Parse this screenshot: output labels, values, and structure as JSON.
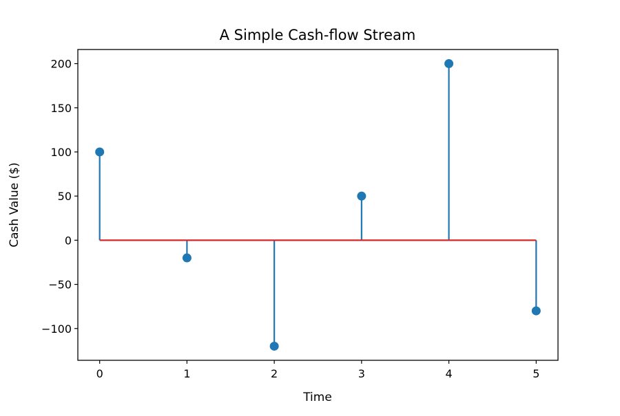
{
  "chart_data": {
    "type": "stem",
    "title": "A Simple Cash-flow Stream",
    "xlabel": "Time",
    "ylabel": "Cash Value ($)",
    "x": [
      0,
      1,
      2,
      3,
      4,
      5
    ],
    "values": [
      100,
      -20,
      -120,
      50,
      200,
      -80
    ],
    "xlim": [
      -0.25,
      5.25
    ],
    "ylim": [
      -136,
      216
    ],
    "xticks": [
      0,
      1,
      2,
      3,
      4,
      5
    ],
    "xtick_labels": [
      "0",
      "1",
      "2",
      "3",
      "4",
      "5"
    ],
    "yticks": [
      -100,
      -50,
      0,
      50,
      100,
      150,
      200
    ],
    "ytick_labels": [
      "−100",
      "−50",
      "0",
      "50",
      "100",
      "150",
      "200"
    ],
    "baseline": 0,
    "grid": false,
    "colors": {
      "stem": "#1f77b4",
      "marker": "#1f77b4",
      "baseline": "#d62728"
    }
  }
}
